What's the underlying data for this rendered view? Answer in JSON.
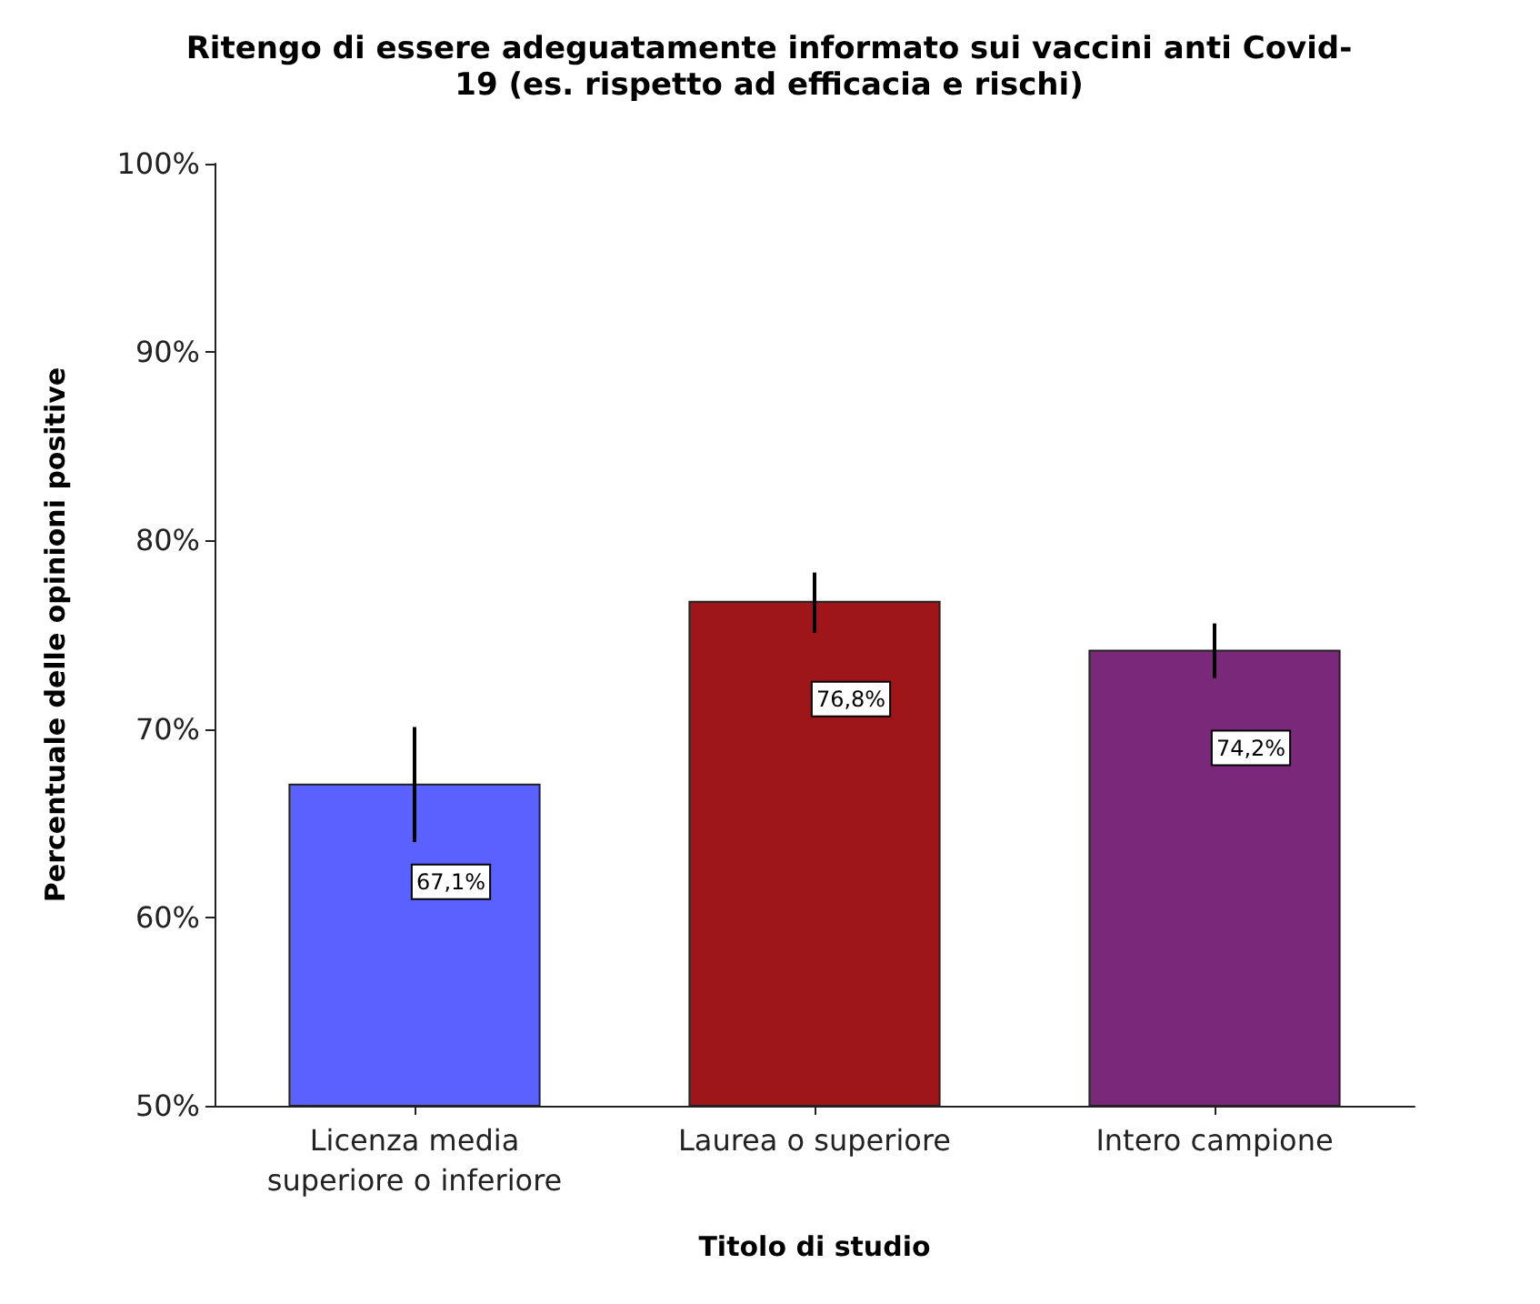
{
  "chart_data": {
    "type": "bar",
    "title": "Ritengo di essere adeguatamente informato sui vaccini anti Covid-\n19 (es. rispetto ad efficacia e rischi)",
    "xlabel": "Titolo di studio",
    "ylabel": "Percentuale delle opinioni positive",
    "categories": [
      "Licenza media\nsuperiore o inferiore",
      "Laurea o superiore",
      "Intero campione"
    ],
    "values": [
      67.1,
      76.8,
      74.2
    ],
    "colors": [
      "#5b61fe",
      "#9e1619",
      "#7a2879"
    ],
    "errors": [
      [
        64.0,
        70.1
      ],
      [
        75.1,
        78.3
      ],
      [
        72.7,
        75.6
      ]
    ],
    "value_labels": [
      "67,1%",
      "76,8%",
      "74,2%"
    ],
    "ylim": [
      50,
      100
    ],
    "yticks": [
      {
        "value": 50,
        "label": "50%"
      },
      {
        "value": 60,
        "label": "60%"
      },
      {
        "value": 70,
        "label": "70%"
      },
      {
        "value": 80,
        "label": "80%"
      },
      {
        "value": 90,
        "label": "90%"
      },
      {
        "value": 100,
        "label": "100%"
      }
    ],
    "grid": false
  }
}
